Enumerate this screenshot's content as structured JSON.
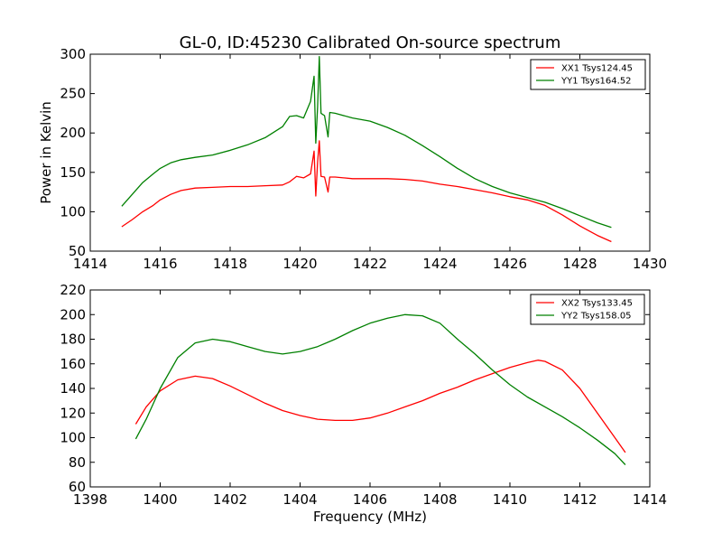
{
  "figure": {
    "title": "GL-0, ID:45230 Calibrated On-source spectrum",
    "xlabel": "Frequency (MHz)"
  },
  "chart_data": [
    {
      "type": "line",
      "title": "GL-0, ID:45230 Calibrated On-source spectrum",
      "xlabel": "",
      "ylabel": "Power in Kelvin",
      "xlim": [
        1414,
        1430
      ],
      "ylim": [
        50,
        300
      ],
      "xticks": [
        1414,
        1416,
        1418,
        1420,
        1422,
        1424,
        1426,
        1428,
        1430
      ],
      "yticks": [
        50,
        100,
        150,
        200,
        250,
        300
      ],
      "grid": false,
      "legend_position": "top-right",
      "series": [
        {
          "name": "XX1 Tsys124.45",
          "color": "#ff0000",
          "x": [
            1414.9,
            1415.2,
            1415.5,
            1415.8,
            1416.0,
            1416.3,
            1416.6,
            1417.0,
            1417.5,
            1418.0,
            1418.5,
            1419.0,
            1419.5,
            1419.7,
            1419.9,
            1420.1,
            1420.3,
            1420.4,
            1420.45,
            1420.5,
            1420.55,
            1420.6,
            1420.7,
            1420.8,
            1420.85,
            1421.0,
            1421.5,
            1422.0,
            1422.5,
            1423.0,
            1423.5,
            1424.0,
            1424.5,
            1425.0,
            1425.5,
            1426.0,
            1426.5,
            1427.0,
            1427.5,
            1428.0,
            1428.5,
            1428.9
          ],
          "y": [
            81,
            90,
            100,
            108,
            115,
            122,
            127,
            130,
            131,
            132,
            132,
            133,
            134,
            138,
            145,
            143,
            148,
            177,
            120,
            163,
            190,
            145,
            144,
            125,
            144,
            144,
            142,
            142,
            142,
            141,
            139,
            135,
            132,
            128,
            124,
            119,
            115,
            108,
            96,
            82,
            70,
            62
          ]
        },
        {
          "name": "YY1 Tsys164.52",
          "color": "#008000",
          "x": [
            1414.9,
            1415.2,
            1415.5,
            1415.8,
            1416.0,
            1416.3,
            1416.6,
            1417.0,
            1417.5,
            1418.0,
            1418.5,
            1419.0,
            1419.5,
            1419.7,
            1419.9,
            1420.1,
            1420.3,
            1420.4,
            1420.45,
            1420.5,
            1420.55,
            1420.6,
            1420.7,
            1420.8,
            1420.85,
            1421.0,
            1421.5,
            1422.0,
            1422.5,
            1423.0,
            1423.5,
            1424.0,
            1424.5,
            1425.0,
            1425.5,
            1426.0,
            1426.5,
            1427.0,
            1427.5,
            1428.0,
            1428.5,
            1428.9
          ],
          "y": [
            107,
            122,
            137,
            148,
            155,
            162,
            166,
            169,
            172,
            178,
            185,
            194,
            208,
            221,
            222,
            219,
            240,
            272,
            187,
            233,
            297,
            225,
            222,
            195,
            226,
            225,
            219,
            215,
            207,
            197,
            184,
            170,
            155,
            142,
            132,
            124,
            118,
            112,
            104,
            95,
            86,
            80
          ]
        }
      ]
    },
    {
      "type": "line",
      "title": "",
      "xlabel": "Frequency (MHz)",
      "ylabel": "",
      "xlim": [
        1398,
        1414
      ],
      "ylim": [
        60,
        220
      ],
      "xticks": [
        1398,
        1400,
        1402,
        1404,
        1406,
        1408,
        1410,
        1412,
        1414
      ],
      "yticks": [
        60,
        80,
        100,
        120,
        140,
        160,
        180,
        200,
        220
      ],
      "grid": false,
      "legend_position": "top-right",
      "series": [
        {
          "name": "XX2 Tsys133.45",
          "color": "#ff0000",
          "x": [
            1399.3,
            1399.6,
            1400.0,
            1400.5,
            1401.0,
            1401.5,
            1402.0,
            1402.5,
            1403.0,
            1403.5,
            1404.0,
            1404.5,
            1405.0,
            1405.5,
            1406.0,
            1406.5,
            1407.0,
            1407.5,
            1408.0,
            1408.5,
            1409.0,
            1409.5,
            1410.0,
            1410.5,
            1410.8,
            1411.0,
            1411.5,
            1412.0,
            1412.5,
            1413.0,
            1413.3
          ],
          "y": [
            111,
            125,
            138,
            147,
            150,
            148,
            142,
            135,
            128,
            122,
            118,
            115,
            114,
            114,
            116,
            120,
            125,
            130,
            136,
            141,
            147,
            152,
            157,
            161,
            163,
            162,
            155,
            140,
            120,
            100,
            88
          ]
        },
        {
          "name": "YY2 Tsys158.05",
          "color": "#008000",
          "x": [
            1399.3,
            1399.6,
            1400.0,
            1400.5,
            1401.0,
            1401.5,
            1402.0,
            1402.5,
            1403.0,
            1403.5,
            1404.0,
            1404.5,
            1405.0,
            1405.5,
            1406.0,
            1406.5,
            1407.0,
            1407.5,
            1408.0,
            1408.5,
            1409.0,
            1409.5,
            1410.0,
            1410.5,
            1411.0,
            1411.5,
            1412.0,
            1412.5,
            1413.0,
            1413.3
          ],
          "y": [
            99,
            115,
            140,
            165,
            177,
            180,
            178,
            174,
            170,
            168,
            170,
            174,
            180,
            187,
            193,
            197,
            200,
            199,
            193,
            180,
            168,
            155,
            143,
            133,
            125,
            117,
            108,
            98,
            87,
            78
          ]
        }
      ]
    }
  ]
}
